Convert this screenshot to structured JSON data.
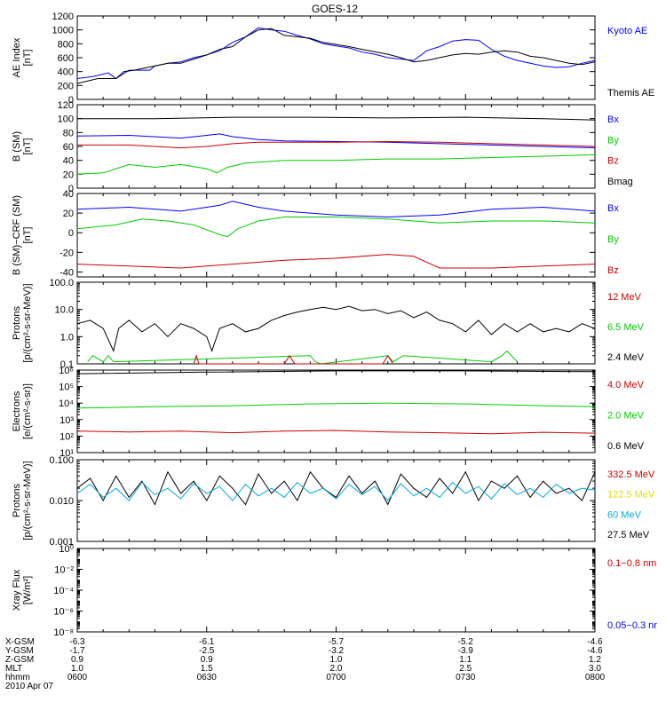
{
  "title": "GOES-12",
  "colors": {
    "black": "#000000",
    "blue": "#0000ff",
    "green": "#00cc00",
    "red": "#cc0000",
    "cyan": "#00aadd",
    "yellow": "#dddd00"
  },
  "chart_data": [
    {
      "type": "line",
      "ylabel": [
        "AE Index",
        "[nT]"
      ],
      "ylim": [
        0,
        1200
      ],
      "yscale": "linear",
      "yticks": [
        "0",
        "200",
        "400",
        "600",
        "800",
        "1000",
        "1200"
      ],
      "ytick_values": [
        0,
        200,
        400,
        600,
        800,
        1000,
        1200
      ],
      "legend": [
        {
          "name": "Kyoto AE",
          "color": "#0000ff"
        },
        {
          "name": "Themis AE",
          "color": "#000000"
        }
      ],
      "series": [
        {
          "name": "Kyoto AE",
          "color": "#0000ff",
          "x": [
            0,
            6,
            12,
            15,
            20,
            28,
            30,
            35,
            40,
            45,
            50,
            55,
            60,
            65,
            70,
            75,
            80,
            85,
            90,
            95,
            100,
            105,
            110,
            115,
            120,
            130,
            135,
            140,
            145,
            150,
            155,
            160,
            165,
            170,
            175,
            180,
            185,
            190,
            195,
            200
          ],
          "y": [
            300,
            330,
            380,
            300,
            420,
            420,
            480,
            520,
            540,
            600,
            640,
            700,
            820,
            900,
            1030,
            1000,
            980,
            920,
            870,
            800,
            770,
            740,
            680,
            650,
            600,
            560,
            700,
            760,
            840,
            860,
            850,
            720,
            620,
            560,
            520,
            480,
            460,
            470,
            520,
            560
          ]
        },
        {
          "name": "Themis AE",
          "color": "#000000",
          "x": [
            0,
            8,
            15,
            18,
            22,
            30,
            35,
            40,
            45,
            50,
            55,
            60,
            65,
            70,
            75,
            80,
            85,
            90,
            95,
            100,
            105,
            110,
            120,
            125,
            130,
            135,
            140,
            145,
            150,
            155,
            160,
            165,
            170,
            175,
            180,
            185,
            190,
            195,
            200
          ],
          "y": [
            230,
            300,
            300,
            400,
            420,
            480,
            520,
            520,
            580,
            640,
            720,
            760,
            900,
            1000,
            1020,
            920,
            900,
            880,
            820,
            790,
            760,
            720,
            650,
            600,
            540,
            560,
            600,
            640,
            660,
            650,
            680,
            700,
            680,
            620,
            600,
            560,
            520,
            500,
            540
          ]
        }
      ]
    },
    {
      "type": "line",
      "ylabel": [
        "B (SM)",
        "[nT]"
      ],
      "ylim": [
        0,
        120
      ],
      "yscale": "linear",
      "yticks": [
        "0",
        "20",
        "40",
        "60",
        "80",
        "100",
        "120"
      ],
      "ytick_values": [
        0,
        20,
        40,
        60,
        80,
        100,
        120
      ],
      "legend": [
        {
          "name": "Bx",
          "color": "#0000ff"
        },
        {
          "name": "By",
          "color": "#00cc00"
        },
        {
          "name": "Bz",
          "color": "#cc0000"
        },
        {
          "name": "Bmag",
          "color": "#000000"
        }
      ],
      "series": [
        {
          "name": "Bmag",
          "color": "#000000",
          "x": [
            0,
            30,
            60,
            90,
            120,
            150,
            180,
            200
          ],
          "y": [
            100,
            100,
            102,
            102,
            101,
            102,
            100,
            98
          ]
        },
        {
          "name": "Bx",
          "color": "#0000ff",
          "x": [
            0,
            20,
            40,
            50,
            55,
            60,
            70,
            80,
            100,
            120,
            140,
            160,
            180,
            200
          ],
          "y": [
            75,
            76,
            72,
            76,
            78,
            74,
            70,
            68,
            67,
            66,
            64,
            62,
            60,
            58
          ]
        },
        {
          "name": "Bz",
          "color": "#cc0000",
          "x": [
            0,
            20,
            40,
            50,
            60,
            70,
            80,
            100,
            120,
            140,
            160,
            180,
            200
          ],
          "y": [
            62,
            62,
            58,
            60,
            64,
            66,
            66,
            66,
            67,
            66,
            64,
            62,
            60
          ]
        },
        {
          "name": "By",
          "color": "#00cc00",
          "x": [
            0,
            10,
            20,
            30,
            40,
            50,
            54,
            58,
            65,
            80,
            100,
            120,
            140,
            160,
            180,
            200
          ],
          "y": [
            20,
            22,
            34,
            30,
            34,
            28,
            22,
            30,
            36,
            40,
            40,
            42,
            42,
            44,
            46,
            48
          ]
        }
      ]
    },
    {
      "type": "line",
      "ylabel": [
        "B (SM)−CRF (SM)",
        "[nT]"
      ],
      "ylim": [
        -45,
        40
      ],
      "yscale": "linear",
      "yticks": [
        "-40",
        "-20",
        "0",
        "20",
        "40"
      ],
      "ytick_values": [
        -40,
        -20,
        0,
        20,
        40
      ],
      "legend": [
        {
          "name": "Bx",
          "color": "#0000ff"
        },
        {
          "name": "By",
          "color": "#00cc00"
        },
        {
          "name": "Bz",
          "color": "#cc0000"
        }
      ],
      "series": [
        {
          "name": "Bx",
          "color": "#0000ff",
          "x": [
            0,
            20,
            40,
            50,
            55,
            60,
            70,
            80,
            90,
            100,
            120,
            140,
            160,
            180,
            200
          ],
          "y": [
            24,
            26,
            22,
            26,
            28,
            32,
            26,
            22,
            20,
            18,
            16,
            18,
            24,
            26,
            22
          ]
        },
        {
          "name": "By",
          "color": "#00cc00",
          "x": [
            0,
            15,
            25,
            35,
            45,
            55,
            58,
            62,
            70,
            80,
            100,
            120,
            140,
            160,
            180,
            200
          ],
          "y": [
            4,
            8,
            14,
            12,
            8,
            -2,
            -4,
            4,
            12,
            16,
            16,
            14,
            10,
            12,
            12,
            10
          ]
        },
        {
          "name": "Bz",
          "color": "#cc0000",
          "x": [
            0,
            20,
            40,
            50,
            60,
            80,
            100,
            120,
            130,
            135,
            140,
            160,
            180,
            200
          ],
          "y": [
            -32,
            -34,
            -36,
            -34,
            -32,
            -28,
            -26,
            -22,
            -24,
            -30,
            -36,
            -36,
            -34,
            -32
          ]
        }
      ]
    },
    {
      "type": "line",
      "ylabel": [
        "Protons",
        "[p/(cm²-s-sr-MeV)]"
      ],
      "ylim": [
        0.1,
        100.0
      ],
      "yscale": "log",
      "yticks": [
        "0.1",
        "1.0",
        "10.0",
        "100.0"
      ],
      "ytick_values": [
        0.1,
        1,
        10,
        100
      ],
      "legend": [
        {
          "name": "12 MeV",
          "color": "#cc0000"
        },
        {
          "name": "6.5 MeV",
          "color": "#00cc00"
        },
        {
          "name": "2.4 MeV",
          "color": "#000000"
        }
      ],
      "series": [
        {
          "name": "2.4 MeV",
          "color": "#000000",
          "x": [
            0,
            5,
            10,
            14,
            16,
            20,
            25,
            30,
            35,
            40,
            45,
            50,
            52,
            55,
            60,
            65,
            70,
            75,
            80,
            85,
            90,
            95,
            100,
            105,
            110,
            115,
            120,
            125,
            130,
            135,
            140,
            145,
            150,
            155,
            160,
            165,
            170,
            175,
            180,
            185,
            190,
            195,
            200
          ],
          "y": [
            3,
            4,
            2,
            0.3,
            2,
            4,
            1.5,
            3,
            1,
            3,
            2,
            1,
            0.3,
            2,
            3,
            1.5,
            2,
            4,
            6,
            8,
            10,
            12,
            10,
            13,
            9,
            10,
            7,
            9,
            5,
            8,
            4,
            3,
            1.5,
            4,
            1.2,
            3,
            1.5,
            3,
            1.5,
            2,
            1.5,
            3,
            2
          ]
        },
        {
          "name": "6.5 MeV",
          "color": "#00cc00",
          "x": [
            4,
            6,
            10,
            12,
            14,
            90,
            92,
            94,
            120,
            122,
            126,
            160,
            164,
            166,
            170
          ],
          "y": [
            0.12,
            0.2,
            0.12,
            0.2,
            0.12,
            0.2,
            0.12,
            0.1,
            0.2,
            0.12,
            0.2,
            0.12,
            0.2,
            0.3,
            0.12
          ]
        },
        {
          "name": "12 MeV",
          "color": "#cc0000",
          "x": [
            45,
            46,
            47,
            80,
            82,
            84,
            118,
            120,
            122
          ],
          "y": [
            0.1,
            0.2,
            0.1,
            0.1,
            0.2,
            0.1,
            0.1,
            0.2,
            0.1
          ]
        }
      ]
    },
    {
      "type": "line",
      "ylabel": [
        "Electrons",
        "[e/(cm²-s-sr)]"
      ],
      "ylim": [
        10,
        1000000
      ],
      "yscale": "log",
      "yticks": [
        "10¹",
        "10²",
        "10³",
        "10⁴",
        "10⁵",
        "10⁶"
      ],
      "ytick_values": [
        10,
        100,
        1000,
        10000,
        100000,
        1000000
      ],
      "legend": [
        {
          "name": "4.0 MeV",
          "color": "#cc0000"
        },
        {
          "name": "2.0 MeV",
          "color": "#00cc00"
        },
        {
          "name": "0.6 MeV",
          "color": "#000000"
        }
      ],
      "series": [
        {
          "name": "0.6 MeV",
          "color": "#000000",
          "x": [
            0,
            50,
            100,
            150,
            200
          ],
          "y": [
            600000,
            750000,
            900000,
            900000,
            800000
          ]
        },
        {
          "name": "2.0 MeV",
          "color": "#00cc00",
          "x": [
            0,
            30,
            60,
            90,
            120,
            150,
            180,
            200
          ],
          "y": [
            5000,
            6000,
            7000,
            9000,
            10000,
            9000,
            7000,
            6000
          ]
        },
        {
          "name": "4.0 MeV",
          "color": "#cc0000",
          "x": [
            0,
            20,
            40,
            60,
            80,
            100,
            120,
            140,
            160,
            180,
            200
          ],
          "y": [
            200,
            180,
            200,
            160,
            200,
            220,
            180,
            160,
            140,
            170,
            150
          ]
        }
      ]
    },
    {
      "type": "line",
      "ylabel": [
        "Protons",
        "[p/(cm²-s-sr-MeV)]"
      ],
      "ylim": [
        0.001,
        0.1
      ],
      "yscale": "log",
      "yticks": [
        "0.001",
        "0.010",
        "0.100"
      ],
      "ytick_values": [
        0.001,
        0.01,
        0.1
      ],
      "legend": [
        {
          "name": "332.5 MeV",
          "color": "#cc0000"
        },
        {
          "name": "122.5 MeV",
          "color": "#dddd00"
        },
        {
          "name": "60 MeV",
          "color": "#00aadd"
        },
        {
          "name": "27.5 MeV",
          "color": "#000000"
        }
      ],
      "series": [
        {
          "name": "27.5 MeV",
          "color": "#000000",
          "x": [
            0,
            5,
            10,
            15,
            20,
            25,
            30,
            35,
            40,
            45,
            50,
            55,
            60,
            65,
            70,
            75,
            80,
            85,
            90,
            95,
            100,
            105,
            110,
            115,
            120,
            125,
            130,
            135,
            140,
            145,
            150,
            155,
            160,
            165,
            170,
            175,
            180,
            185,
            190,
            195,
            200
          ],
          "y": [
            0.02,
            0.035,
            0.01,
            0.04,
            0.012,
            0.03,
            0.008,
            0.05,
            0.015,
            0.03,
            0.01,
            0.04,
            0.02,
            0.008,
            0.045,
            0.015,
            0.03,
            0.01,
            0.05,
            0.02,
            0.012,
            0.04,
            0.015,
            0.03,
            0.008,
            0.045,
            0.02,
            0.012,
            0.035,
            0.015,
            0.05,
            0.01,
            0.03,
            0.02,
            0.04,
            0.012,
            0.03,
            0.015,
            0.02,
            0.01,
            0.05
          ]
        },
        {
          "name": "60 MeV",
          "color": "#00aadd",
          "x": [
            0,
            5,
            10,
            15,
            20,
            25,
            30,
            35,
            40,
            45,
            50,
            55,
            60,
            65,
            70,
            75,
            80,
            85,
            90,
            95,
            100,
            105,
            110,
            115,
            120,
            125,
            130,
            135,
            140,
            145,
            150,
            155,
            160,
            165,
            170,
            175,
            180,
            185,
            190,
            195,
            200
          ],
          "y": [
            0.015,
            0.025,
            0.012,
            0.02,
            0.01,
            0.028,
            0.014,
            0.02,
            0.011,
            0.026,
            0.015,
            0.022,
            0.01,
            0.025,
            0.013,
            0.02,
            0.012,
            0.028,
            0.015,
            0.02,
            0.011,
            0.025,
            0.014,
            0.022,
            0.01,
            0.026,
            0.013,
            0.02,
            0.012,
            0.028,
            0.015,
            0.022,
            0.011,
            0.026,
            0.014,
            0.02,
            0.012,
            0.025,
            0.015,
            0.02,
            0.018
          ]
        }
      ]
    },
    {
      "type": "line",
      "ylabel": [
        "Xray Flux",
        "[W/m²]"
      ],
      "ylim": [
        1e-08,
        1
      ],
      "yscale": "log",
      "yticks": [
        "10⁻⁸",
        "10⁻⁶",
        "10⁻⁴",
        "10⁻²",
        "10⁰"
      ],
      "ytick_values": [
        1e-08,
        1e-06,
        0.0001,
        0.01,
        1
      ],
      "legend": [
        {
          "name": "0.1−0.8 nm",
          "color": "#cc0000"
        },
        {
          "name": "0.05−0.3 nr",
          "color": "#0000ff"
        }
      ],
      "series": []
    }
  ],
  "xaxis": {
    "ticks": [
      0,
      50,
      100,
      150,
      200
    ],
    "rows": [
      {
        "label": "X-GSM",
        "values": [
          "-6.3",
          "-6.1",
          "-5.7",
          "-5.2",
          "-4.6"
        ]
      },
      {
        "label": "Y-GSM",
        "values": [
          "-1.7",
          "-2.5",
          "-3.2",
          "-3.9",
          "-4.6"
        ]
      },
      {
        "label": "Z-GSM",
        "values": [
          "0.9",
          "0.9",
          "1.0",
          "1.1",
          "1.2"
        ]
      },
      {
        "label": "MLT",
        "values": [
          "1.0",
          "1.5",
          "2.0",
          "2.5",
          "3.0"
        ]
      },
      {
        "label": "hhmm",
        "values": [
          "0600",
          "0630",
          "0700",
          "0730",
          "0800"
        ]
      }
    ],
    "date": "2010 Apr 07"
  }
}
